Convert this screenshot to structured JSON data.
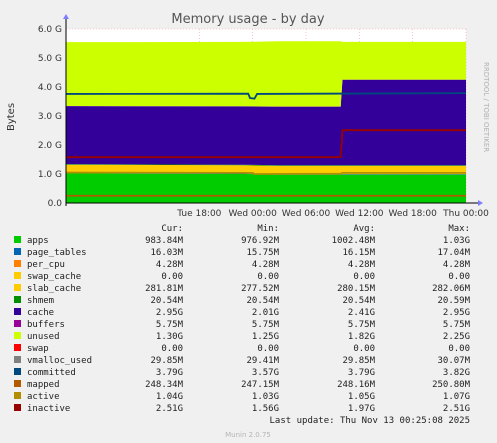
{
  "chart_data": {
    "type": "area",
    "title": "Memory usage - by day",
    "ylabel": "Bytes",
    "side_label": "RRDTOOL / TOBI OETIKER",
    "ylim": [
      0,
      6.0
    ],
    "y_unit": "G",
    "y_ticks": [
      "0.0",
      "1.0 G",
      "2.0 G",
      "3.0 G",
      "4.0 G",
      "5.0 G",
      "6.0 G"
    ],
    "x_ticks": [
      "Tue 18:00",
      "Wed 00:00",
      "Wed 06:00",
      "Wed 12:00",
      "Wed 18:00",
      "Thu 00:00"
    ],
    "x_hours_range": [
      -21,
      24
    ],
    "columns": [
      "Cur:",
      "Min:",
      "Avg:",
      "Max:"
    ],
    "legend": [
      {
        "name": "apps",
        "color": "#00cc00",
        "cur": "983.84M",
        "min": "976.92M",
        "avg": "1002.48M",
        "max": "1.03G"
      },
      {
        "name": "page_tables",
        "color": "#0066b3",
        "cur": "16.03M",
        "min": "15.75M",
        "avg": "16.15M",
        "max": "17.04M"
      },
      {
        "name": "per_cpu",
        "color": "#ff8000",
        "cur": "4.28M",
        "min": "4.28M",
        "avg": "4.28M",
        "max": "4.28M"
      },
      {
        "name": "swap_cache",
        "color": "#ffcc00",
        "cur": "0.00",
        "min": "0.00",
        "avg": "0.00",
        "max": "0.00"
      },
      {
        "name": "slab_cache",
        "color": "#ffcc00",
        "cur": "281.81M",
        "min": "277.52M",
        "avg": "280.15M",
        "max": "282.06M"
      },
      {
        "name": "shmem",
        "color": "#008f00",
        "cur": "20.54M",
        "min": "20.54M",
        "avg": "20.54M",
        "max": "20.59M"
      },
      {
        "name": "cache",
        "color": "#330099",
        "cur": "2.95G",
        "min": "2.01G",
        "avg": "2.41G",
        "max": "2.95G"
      },
      {
        "name": "buffers",
        "color": "#990099",
        "cur": "5.75M",
        "min": "5.75M",
        "avg": "5.75M",
        "max": "5.75M"
      },
      {
        "name": "unused",
        "color": "#ccff00",
        "cur": "1.30G",
        "min": "1.25G",
        "avg": "1.82G",
        "max": "2.25G"
      },
      {
        "name": "swap",
        "color": "#ff0000",
        "cur": "0.00",
        "min": "0.00",
        "avg": "0.00",
        "max": "0.00"
      },
      {
        "name": "vmalloc_used",
        "color": "#808080",
        "cur": "29.85M",
        "min": "29.41M",
        "avg": "29.85M",
        "max": "30.07M"
      },
      {
        "name": "committed",
        "color": "#00487d",
        "cur": "3.79G",
        "min": "3.57G",
        "avg": "3.79G",
        "max": "3.82G"
      },
      {
        "name": "mapped",
        "color": "#b35a00",
        "cur": "248.34M",
        "min": "247.15M",
        "avg": "248.16M",
        "max": "250.80M"
      },
      {
        "name": "active",
        "color": "#b38f00",
        "cur": "1.04G",
        "min": "1.03G",
        "avg": "1.05G",
        "max": "1.07G"
      },
      {
        "name": "inactive",
        "color": "#990000",
        "cur": "2.51G",
        "min": "1.56G",
        "avg": "1.97G",
        "max": "2.51G"
      }
    ],
    "series": {
      "stack": [
        {
          "name": "apps",
          "color": "#00cc00",
          "points": [
            [
              -21,
              1.02
            ],
            [
              -1,
              1.0
            ],
            [
              3,
              0.98
            ],
            [
              24,
              0.98
            ]
          ]
        },
        {
          "name": "page_tables",
          "color": "#0066b3",
          "points": [
            [
              -21,
              0.016
            ],
            [
              24,
              0.016
            ]
          ]
        },
        {
          "name": "per_cpu",
          "color": "#ff8000",
          "points": [
            [
              -21,
              0.004
            ],
            [
              24,
              0.004
            ]
          ]
        },
        {
          "name": "slab_cache",
          "color": "#ffcc00",
          "points": [
            [
              -21,
              0.28
            ],
            [
              24,
              0.28
            ]
          ]
        },
        {
          "name": "shmem",
          "color": "#008f00",
          "points": [
            [
              -21,
              0.02
            ],
            [
              24,
              0.02
            ]
          ]
        },
        {
          "name": "cache",
          "color": "#330099",
          "points": [
            [
              -21,
              2.0
            ],
            [
              -1,
              2.01
            ],
            [
              3,
              2.02
            ],
            [
              9.9,
              2.02
            ],
            [
              10.1,
              2.95
            ],
            [
              24,
              2.95
            ]
          ]
        },
        {
          "name": "buffers",
          "color": "#990099",
          "points": [
            [
              -21,
              0.006
            ],
            [
              24,
              0.006
            ]
          ]
        },
        {
          "name": "unused",
          "color": "#ccff00",
          "points": [
            [
              -21,
              2.2
            ],
            [
              -1,
              2.22
            ],
            [
              3,
              2.25
            ],
            [
              9.9,
              2.25
            ],
            [
              10.1,
              1.3
            ],
            [
              24,
              1.3
            ]
          ]
        }
      ],
      "lines": [
        {
          "name": "committed",
          "color": "#00487d",
          "points": [
            [
              -21,
              3.76
            ],
            [
              -0.5,
              3.77
            ],
            [
              -0.3,
              3.62
            ],
            [
              0.2,
              3.6
            ],
            [
              0.5,
              3.76
            ],
            [
              24,
              3.79
            ]
          ]
        },
        {
          "name": "mapped",
          "color": "#b35a00",
          "points": [
            [
              -21,
              0.25
            ],
            [
              24,
              0.25
            ]
          ]
        },
        {
          "name": "active",
          "color": "#b38f00",
          "points": [
            [
              -21,
              1.05
            ],
            [
              0,
              1.04
            ],
            [
              0.2,
              1.0
            ],
            [
              9.9,
              1.01
            ],
            [
              10.1,
              1.04
            ],
            [
              24,
              1.04
            ]
          ]
        },
        {
          "name": "inactive",
          "color": "#990000",
          "points": [
            [
              -21,
              1.58
            ],
            [
              9.9,
              1.58
            ],
            [
              10.1,
              2.51
            ],
            [
              24,
              2.51
            ]
          ]
        }
      ]
    }
  },
  "footer": {
    "last_update": "Last update: Thu Nov 13 00:25:08 2025",
    "version": "Munin 2.0.75"
  }
}
